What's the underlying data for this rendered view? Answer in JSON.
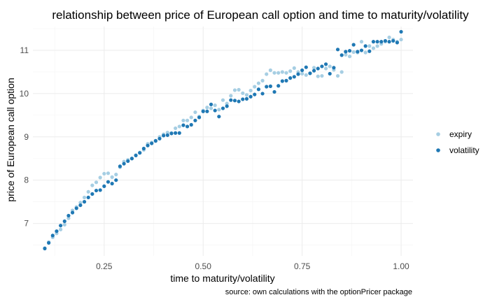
{
  "chart_data": {
    "type": "scatter",
    "title": "relationship between price of European call option and time  to maturity/volatility",
    "xlabel": "time to maturity/volatility",
    "ylabel": "price of European call option",
    "caption": "source: own calculations with the optionPricer package",
    "xlim": [
      0.07,
      1.03
    ],
    "ylim": [
      6.25,
      11.55
    ],
    "x_ticks": [
      0.25,
      0.5,
      0.75,
      1.0
    ],
    "x_tick_labels": [
      "0.25",
      "0.50",
      "0.75",
      "1.00"
    ],
    "y_ticks": [
      7,
      8,
      9,
      10,
      11
    ],
    "y_tick_labels": [
      "7",
      "8",
      "9",
      "10",
      "11"
    ],
    "grid": true,
    "legend_position": "right",
    "series": [
      {
        "name": "expiry",
        "color": "#a6cee3",
        "x": [
          0.1,
          0.11,
          0.12,
          0.13,
          0.14,
          0.15,
          0.16,
          0.17,
          0.18,
          0.19,
          0.2,
          0.21,
          0.22,
          0.23,
          0.24,
          0.25,
          0.26,
          0.27,
          0.28,
          0.29,
          0.3,
          0.31,
          0.32,
          0.33,
          0.34,
          0.35,
          0.36,
          0.37,
          0.38,
          0.39,
          0.4,
          0.41,
          0.42,
          0.43,
          0.44,
          0.45,
          0.46,
          0.47,
          0.48,
          0.49,
          0.5,
          0.51,
          0.52,
          0.53,
          0.54,
          0.55,
          0.56,
          0.57,
          0.58,
          0.59,
          0.6,
          0.61,
          0.62,
          0.63,
          0.64,
          0.65,
          0.66,
          0.67,
          0.68,
          0.69,
          0.7,
          0.71,
          0.72,
          0.73,
          0.74,
          0.75,
          0.76,
          0.77,
          0.78,
          0.79,
          0.8,
          0.81,
          0.82,
          0.83,
          0.84,
          0.85,
          0.86,
          0.87,
          0.88,
          0.89,
          0.9,
          0.91,
          0.92,
          0.93,
          0.94,
          0.95,
          0.96,
          0.97,
          0.98,
          0.99,
          1.0
        ],
        "y": [
          6.43,
          6.57,
          6.68,
          6.77,
          6.86,
          6.97,
          7.12,
          7.3,
          7.38,
          7.48,
          7.6,
          7.73,
          7.88,
          7.95,
          8.06,
          8.15,
          8.16,
          8.07,
          8.13,
          8.3,
          8.43,
          8.47,
          8.5,
          8.58,
          8.64,
          8.7,
          8.84,
          8.87,
          8.9,
          9.0,
          9.06,
          9.1,
          9.09,
          9.2,
          9.24,
          9.38,
          9.38,
          9.45,
          9.57,
          9.47,
          9.61,
          9.68,
          9.66,
          9.73,
          9.63,
          9.85,
          9.77,
          9.95,
          10.08,
          10.09,
          10.01,
          9.97,
          10.07,
          10.16,
          10.24,
          10.3,
          10.45,
          10.54,
          10.48,
          10.48,
          10.5,
          10.48,
          10.52,
          10.59,
          10.5,
          10.46,
          10.43,
          10.47,
          10.6,
          10.4,
          10.41,
          10.58,
          10.63,
          10.55,
          10.41,
          10.5,
          10.9,
          10.86,
          10.96,
          10.95,
          11.2,
          10.95,
          11.1,
          11.05,
          11.1,
          11.15,
          11.2,
          11.3,
          11.25,
          11.2,
          11.25
        ]
      },
      {
        "name": "volatility",
        "color": "#1f78b4",
        "x": [
          0.1,
          0.11,
          0.12,
          0.13,
          0.14,
          0.15,
          0.16,
          0.17,
          0.18,
          0.19,
          0.2,
          0.21,
          0.22,
          0.23,
          0.24,
          0.25,
          0.26,
          0.27,
          0.28,
          0.29,
          0.3,
          0.31,
          0.32,
          0.33,
          0.34,
          0.35,
          0.36,
          0.37,
          0.38,
          0.39,
          0.4,
          0.41,
          0.42,
          0.43,
          0.44,
          0.45,
          0.46,
          0.47,
          0.48,
          0.49,
          0.5,
          0.51,
          0.52,
          0.53,
          0.54,
          0.55,
          0.56,
          0.57,
          0.58,
          0.59,
          0.6,
          0.61,
          0.62,
          0.63,
          0.64,
          0.65,
          0.66,
          0.67,
          0.68,
          0.69,
          0.7,
          0.71,
          0.72,
          0.73,
          0.74,
          0.75,
          0.76,
          0.77,
          0.78,
          0.79,
          0.8,
          0.81,
          0.82,
          0.83,
          0.84,
          0.85,
          0.86,
          0.87,
          0.88,
          0.89,
          0.9,
          0.91,
          0.92,
          0.93,
          0.94,
          0.95,
          0.96,
          0.97,
          0.98,
          0.99,
          1.0
        ],
        "y": [
          6.42,
          6.55,
          6.72,
          6.82,
          6.95,
          7.05,
          7.18,
          7.25,
          7.35,
          7.42,
          7.5,
          7.6,
          7.68,
          7.76,
          7.77,
          7.86,
          7.96,
          7.92,
          8.0,
          8.32,
          8.38,
          8.44,
          8.5,
          8.57,
          8.63,
          8.73,
          8.8,
          8.85,
          8.91,
          8.96,
          9.03,
          9.04,
          9.08,
          9.09,
          9.09,
          9.27,
          9.24,
          9.28,
          9.38,
          9.45,
          9.59,
          9.59,
          9.75,
          9.61,
          9.47,
          9.66,
          9.71,
          9.85,
          9.84,
          9.82,
          9.87,
          9.88,
          9.93,
          9.98,
          10.1,
          10.0,
          10.16,
          10.17,
          10.04,
          10.18,
          10.29,
          10.3,
          10.36,
          10.39,
          10.45,
          10.54,
          10.61,
          10.47,
          10.53,
          10.58,
          10.63,
          10.68,
          10.46,
          10.6,
          11.02,
          10.89,
          10.97,
          10.99,
          11.13,
          10.97,
          11.0,
          11.1,
          10.98,
          11.2,
          11.2,
          11.2,
          11.22,
          11.2,
          11.22,
          11.18,
          11.43
        ]
      }
    ]
  }
}
